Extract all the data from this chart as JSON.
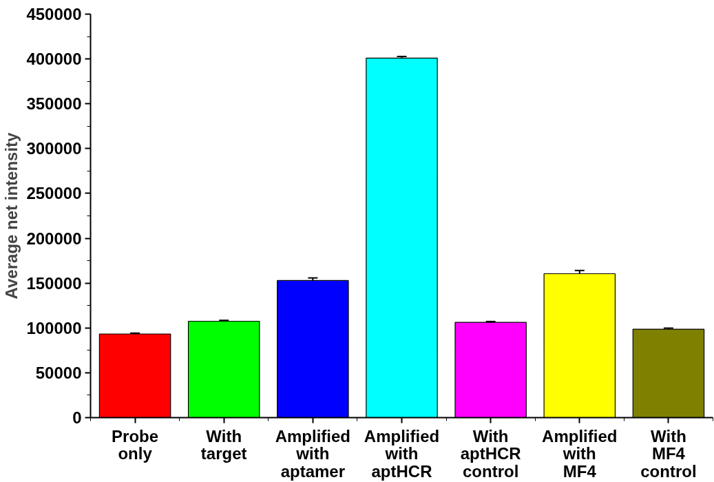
{
  "chart_data": {
    "type": "bar",
    "ylabel": "Average net intensity",
    "categories": [
      "Probe\nonly",
      "With\ntarget",
      "Amplified\nwith\naptamer",
      "Amplified\nwith\naptHCR",
      "With\naptHCR\ncontrol",
      "Amplified\nwith\nMF4",
      "With\nMF4\ncontrol"
    ],
    "values": [
      93300,
      107500,
      152900,
      401000,
      106200,
      160500,
      98600
    ],
    "errors": [
      1000,
      1000,
      2900,
      1800,
      1000,
      3600,
      1200
    ],
    "colors": [
      "#ff0000",
      "#00ff00",
      "#0000ff",
      "#00ffff",
      "#ff00ff",
      "#ffff00",
      "#808000"
    ],
    "ylim": [
      0,
      450000
    ],
    "yticks": [
      0,
      50000,
      100000,
      150000,
      200000,
      250000,
      300000,
      350000,
      400000,
      450000
    ],
    "grid": false
  }
}
